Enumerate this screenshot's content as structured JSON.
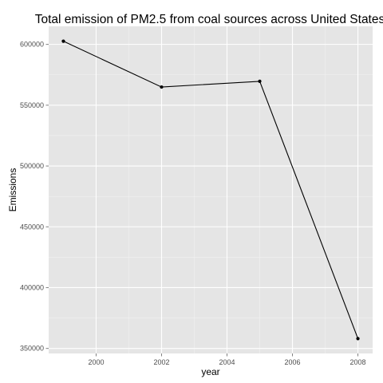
{
  "chart_data": {
    "type": "line",
    "title": "Total emission of PM2.5 from coal sources across United States",
    "xlabel": "year",
    "ylabel": "Emissions",
    "x": [
      1999,
      2002,
      2005,
      2008
    ],
    "values": [
      602624.1,
      564935.9,
      569654.7,
      358083.9
    ],
    "xlim": [
      1998.55,
      2008.45
    ],
    "ylim": [
      345850,
      614850
    ],
    "x_ticks": [
      2000,
      2002,
      2004,
      2006,
      2008
    ],
    "y_ticks": [
      350000,
      400000,
      450000,
      500000,
      550000,
      600000
    ],
    "x_tick_labels": [
      "2000",
      "2002",
      "2004",
      "2006",
      "2008"
    ],
    "y_tick_labels": [
      "350000",
      "400000",
      "450000",
      "500000",
      "550000",
      "600000"
    ],
    "grid": true,
    "colors": {
      "panel": "#e5e5e5",
      "grid_major": "#ffffff",
      "grid_minor": "#f2f2f2",
      "line": "#000000",
      "point": "#000000"
    }
  }
}
